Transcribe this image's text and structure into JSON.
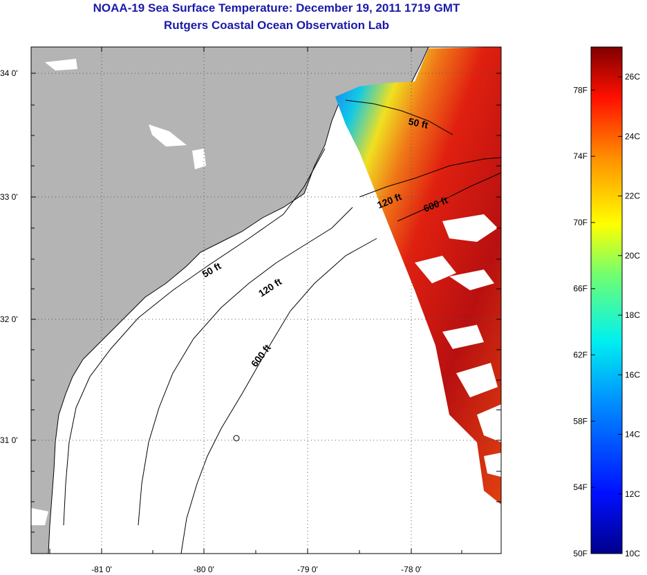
{
  "header": {
    "title": "NOAA-19 Sea Surface Temperature:  December 19, 2011 1719 GMT",
    "subtitle": "Rutgers Coastal Ocean Observation Lab"
  },
  "map": {
    "lon_labels": [
      "-81 0'",
      "-80 0'",
      "-79 0'",
      "-78 0'"
    ],
    "lat_labels": [
      "34 0'",
      "33 0'",
      "32 0'",
      "31 0'"
    ],
    "contours": [
      {
        "label": "50 ft",
        "instance": "north"
      },
      {
        "label": "120 ft",
        "instance": "north"
      },
      {
        "label": "600 ft",
        "instance": "north"
      },
      {
        "label": "50 ft",
        "instance": "south"
      },
      {
        "label": "120 ft",
        "instance": "south"
      },
      {
        "label": "600 ft",
        "instance": "south"
      }
    ],
    "colors": {
      "land": "#b4b4b4",
      "ocean": "#ffffff",
      "title": "#1a1aa8"
    }
  },
  "colorbar": {
    "min_c": 10,
    "max_c": 27,
    "fahrenheit_labels": [
      "78F",
      "74F",
      "70F",
      "66F",
      "62F",
      "58F",
      "54F",
      "50F"
    ],
    "celsius_labels": [
      "26C",
      "24C",
      "22C",
      "20C",
      "18C",
      "16C",
      "14C",
      "12C",
      "10C"
    ]
  }
}
